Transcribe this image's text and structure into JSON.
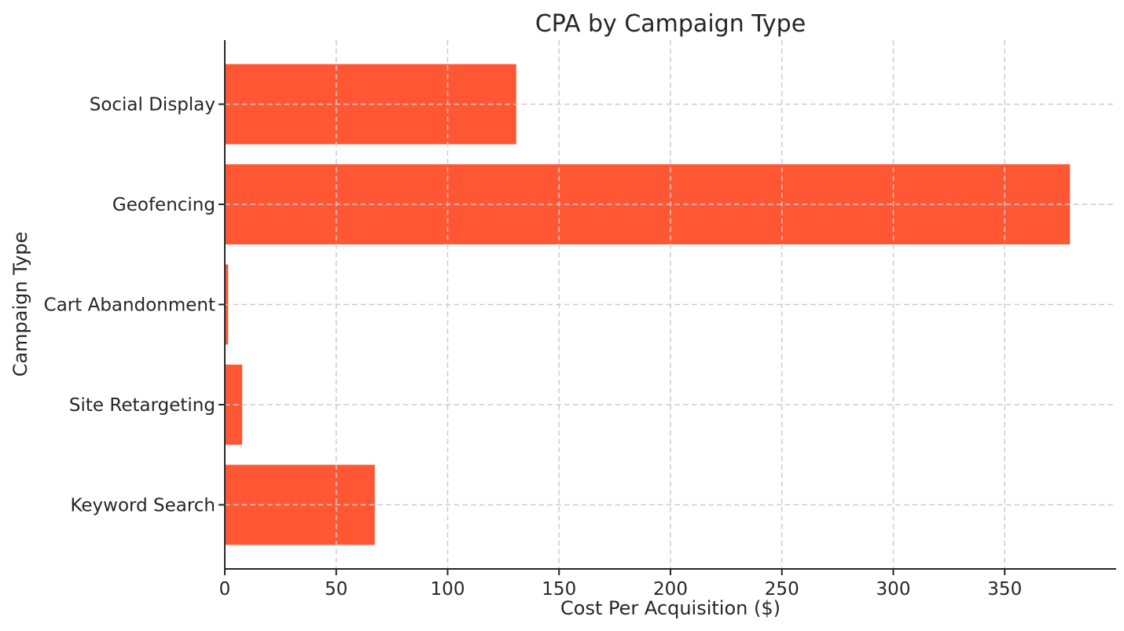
{
  "chart_data": {
    "type": "bar",
    "orientation": "horizontal",
    "title": "CPA by Campaign Type",
    "xlabel": "Cost Per Acquisition ($)",
    "ylabel": "Campaign Type",
    "categories": [
      "Social Display",
      "Geofencing",
      "Cart Abandonment",
      "Site Retargeting",
      "Keyword Search"
    ],
    "values": [
      130.8,
      379.3,
      1.5,
      7.8,
      67.3
    ],
    "xlim": [
      0,
      400
    ],
    "xticks": [
      0,
      50,
      100,
      150,
      200,
      250,
      300,
      350
    ],
    "bar_color": "#FF5733",
    "grid": true,
    "grid_style": "dashed",
    "grid_color": "#cccccc",
    "axis_color": "#262626",
    "text_color": "#262626",
    "background": "#ffffff",
    "legend": "none"
  }
}
